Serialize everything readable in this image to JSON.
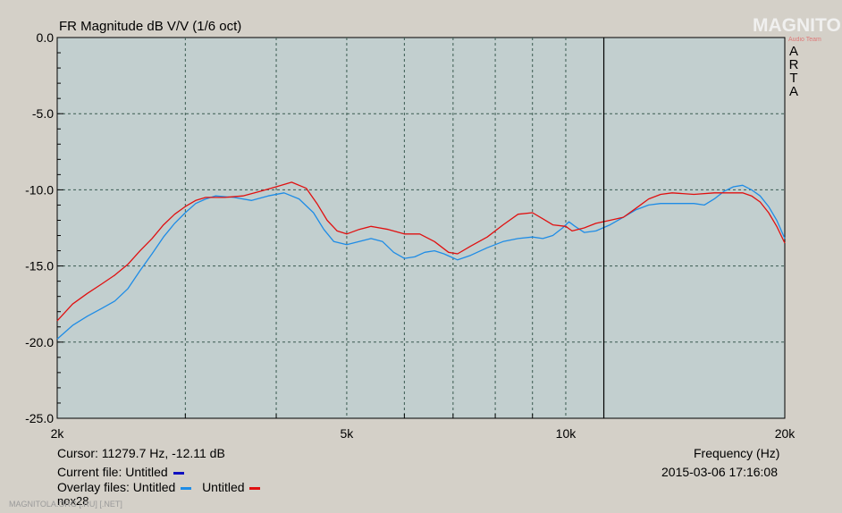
{
  "chart_data": {
    "type": "line",
    "title": "FR Magnitude dB V/V (1/6 oct)",
    "xlabel": "Frequency (Hz)",
    "ylabel": "",
    "x_scale": "log",
    "xlim": [
      2000,
      20000
    ],
    "ylim": [
      -25,
      0
    ],
    "x_tick_values": [
      2000,
      5000,
      10000,
      20000
    ],
    "x_tick_labels": [
      "2k",
      "5k",
      "10k",
      "20k"
    ],
    "x_minor_grid": [
      3000,
      4000,
      6000,
      7000,
      8000,
      9000
    ],
    "y_ticks": [
      0,
      -5,
      -10,
      -15,
      -20,
      -25
    ],
    "y_tick_labels": [
      "0.0",
      "-5.0",
      "-10.0",
      "-15.0",
      "-20.0",
      "-25.0"
    ],
    "grid": true,
    "cursor_x": 11280,
    "series": [
      {
        "name": "Untitled",
        "color": "#1e8ce6",
        "points": [
          [
            2000,
            -19.8
          ],
          [
            2100,
            -18.9
          ],
          [
            2200,
            -18.3
          ],
          [
            2300,
            -17.8
          ],
          [
            2400,
            -17.3
          ],
          [
            2500,
            -16.5
          ],
          [
            2600,
            -15.3
          ],
          [
            2700,
            -14.2
          ],
          [
            2800,
            -13.1
          ],
          [
            2900,
            -12.2
          ],
          [
            3000,
            -11.5
          ],
          [
            3100,
            -10.9
          ],
          [
            3200,
            -10.6
          ],
          [
            3300,
            -10.4
          ],
          [
            3500,
            -10.5
          ],
          [
            3700,
            -10.7
          ],
          [
            3900,
            -10.4
          ],
          [
            4100,
            -10.2
          ],
          [
            4300,
            -10.6
          ],
          [
            4500,
            -11.5
          ],
          [
            4650,
            -12.6
          ],
          [
            4800,
            -13.4
          ],
          [
            5000,
            -13.6
          ],
          [
            5200,
            -13.4
          ],
          [
            5400,
            -13.2
          ],
          [
            5600,
            -13.4
          ],
          [
            5800,
            -14.1
          ],
          [
            6000,
            -14.5
          ],
          [
            6200,
            -14.4
          ],
          [
            6400,
            -14.1
          ],
          [
            6600,
            -14.0
          ],
          [
            6800,
            -14.2
          ],
          [
            7100,
            -14.6
          ],
          [
            7400,
            -14.3
          ],
          [
            7800,
            -13.8
          ],
          [
            8200,
            -13.4
          ],
          [
            8600,
            -13.2
          ],
          [
            9000,
            -13.1
          ],
          [
            9300,
            -13.2
          ],
          [
            9600,
            -13.0
          ],
          [
            9900,
            -12.5
          ],
          [
            10100,
            -12.1
          ],
          [
            10300,
            -12.4
          ],
          [
            10600,
            -12.8
          ],
          [
            11000,
            -12.7
          ],
          [
            11500,
            -12.3
          ],
          [
            12000,
            -11.8
          ],
          [
            12500,
            -11.3
          ],
          [
            13000,
            -11.0
          ],
          [
            13500,
            -10.9
          ],
          [
            14000,
            -10.9
          ],
          [
            15000,
            -10.9
          ],
          [
            15500,
            -11.0
          ],
          [
            16000,
            -10.6
          ],
          [
            16500,
            -10.1
          ],
          [
            17000,
            -9.8
          ],
          [
            17500,
            -9.7
          ],
          [
            18000,
            -10.0
          ],
          [
            18500,
            -10.4
          ],
          [
            19000,
            -11.1
          ],
          [
            19500,
            -12.0
          ],
          [
            20000,
            -13.2
          ]
        ]
      },
      {
        "name": "Untitled",
        "color": "#e01010",
        "points": [
          [
            2000,
            -18.6
          ],
          [
            2100,
            -17.5
          ],
          [
            2200,
            -16.8
          ],
          [
            2300,
            -16.2
          ],
          [
            2400,
            -15.6
          ],
          [
            2500,
            -14.9
          ],
          [
            2600,
            -14.0
          ],
          [
            2700,
            -13.2
          ],
          [
            2800,
            -12.3
          ],
          [
            2900,
            -11.6
          ],
          [
            3000,
            -11.1
          ],
          [
            3100,
            -10.7
          ],
          [
            3200,
            -10.5
          ],
          [
            3400,
            -10.5
          ],
          [
            3600,
            -10.4
          ],
          [
            3800,
            -10.1
          ],
          [
            4000,
            -9.8
          ],
          [
            4200,
            -9.5
          ],
          [
            4400,
            -9.9
          ],
          [
            4550,
            -10.9
          ],
          [
            4700,
            -12.0
          ],
          [
            4850,
            -12.7
          ],
          [
            5000,
            -12.9
          ],
          [
            5200,
            -12.6
          ],
          [
            5400,
            -12.4
          ],
          [
            5700,
            -12.6
          ],
          [
            6000,
            -12.9
          ],
          [
            6300,
            -12.9
          ],
          [
            6600,
            -13.4
          ],
          [
            6900,
            -14.1
          ],
          [
            7100,
            -14.2
          ],
          [
            7400,
            -13.7
          ],
          [
            7800,
            -13.1
          ],
          [
            8200,
            -12.3
          ],
          [
            8600,
            -11.6
          ],
          [
            9000,
            -11.5
          ],
          [
            9300,
            -11.9
          ],
          [
            9600,
            -12.3
          ],
          [
            10000,
            -12.4
          ],
          [
            10200,
            -12.7
          ],
          [
            10600,
            -12.5
          ],
          [
            11000,
            -12.2
          ],
          [
            11500,
            -12.0
          ],
          [
            12000,
            -11.8
          ],
          [
            12500,
            -11.2
          ],
          [
            13000,
            -10.6
          ],
          [
            13500,
            -10.3
          ],
          [
            14000,
            -10.2
          ],
          [
            15000,
            -10.3
          ],
          [
            16000,
            -10.2
          ],
          [
            17000,
            -10.2
          ],
          [
            17500,
            -10.2
          ],
          [
            18000,
            -10.4
          ],
          [
            18500,
            -10.8
          ],
          [
            19000,
            -11.5
          ],
          [
            19500,
            -12.4
          ],
          [
            20000,
            -13.5
          ]
        ]
      }
    ]
  },
  "info": {
    "cursor_text": "Cursor: 11279.7 Hz, -12.11 dB",
    "current_file_label": "Current file: Untitled",
    "overlay_label": "Overlay files: Untitled",
    "overlay_second": "Untitled",
    "extra_name": "nox28",
    "datetime": "2015-03-06   17:16:08",
    "current_color": "#1010c0",
    "plot_bg": "#c2cfcf"
  },
  "branding": {
    "arta_letters": [
      "A",
      "R",
      "T",
      "A"
    ],
    "watermark_logo": "MAGNITOLA",
    "watermark_sub": "Audio Team",
    "watermark_bottom": "MAGNITOLA.ORG  [.RU]  [.NET]"
  }
}
